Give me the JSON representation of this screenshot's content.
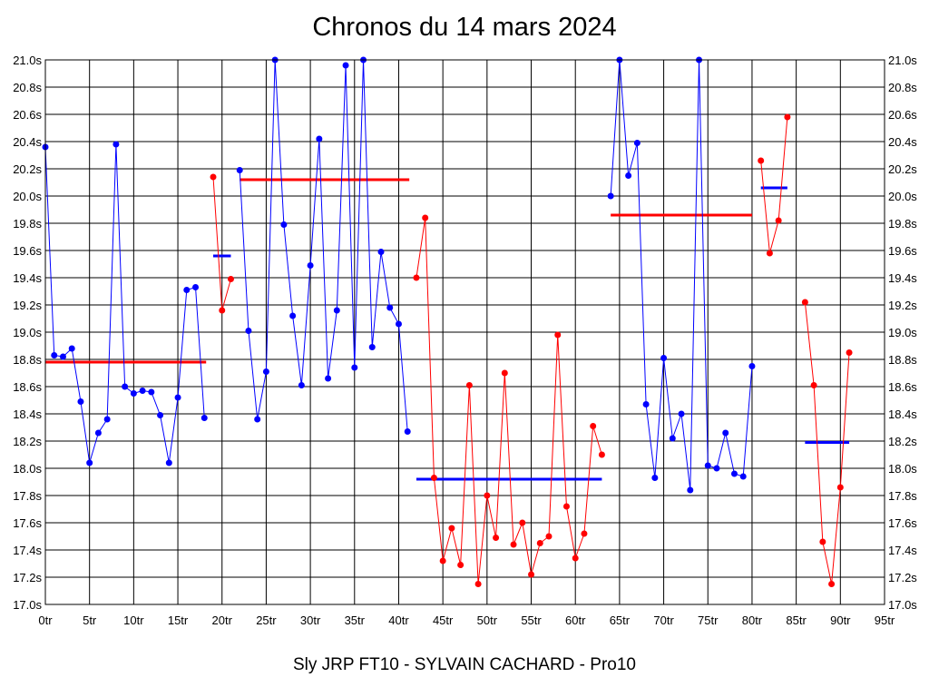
{
  "chart_data": {
    "type": "line",
    "title": "Chronos du 14 mars 2024",
    "xlabel": "Sly JRP FT10 - SYLVAIN CACHARD - Pro10",
    "ylabel": "",
    "xlim": [
      0,
      95
    ],
    "ylim": [
      17.0,
      21.0
    ],
    "grid": true,
    "x_ticks": [
      0,
      5,
      10,
      15,
      20,
      25,
      30,
      35,
      40,
      45,
      50,
      55,
      60,
      65,
      70,
      75,
      80,
      85,
      90,
      95
    ],
    "x_tick_labels": [
      "0tr",
      "5tr",
      "10tr",
      "15tr",
      "20tr",
      "25tr",
      "30tr",
      "35tr",
      "40tr",
      "45tr",
      "50tr",
      "55tr",
      "60tr",
      "65tr",
      "70tr",
      "75tr",
      "80tr",
      "85tr",
      "90tr",
      "95tr"
    ],
    "y_ticks": [
      17.0,
      17.2,
      17.4,
      17.6,
      17.8,
      18.0,
      18.2,
      18.4,
      18.6,
      18.8,
      19.0,
      19.2,
      19.4,
      19.6,
      19.8,
      20.0,
      20.2,
      20.4,
      20.6,
      20.8,
      21.0
    ],
    "y_tick_labels": [
      "17.0s",
      "17.2s",
      "17.4s",
      "17.6s",
      "17.8s",
      "18.0s",
      "18.2s",
      "18.4s",
      "18.6s",
      "18.8s",
      "19.0s",
      "19.2s",
      "19.4s",
      "19.6s",
      "19.8s",
      "20.0s",
      "20.2s",
      "20.4s",
      "20.6s",
      "20.8s",
      "21.0s"
    ],
    "colors": {
      "blue": "#0000ff",
      "red": "#ff0000",
      "grid": "#000000"
    },
    "series": [
      {
        "color": "#0000ff",
        "x": [
          0,
          1,
          2,
          3,
          4,
          5,
          6,
          7,
          8,
          9,
          10,
          11,
          12,
          13,
          14,
          15,
          16,
          17,
          18
        ],
        "values": [
          20.36,
          18.83,
          18.82,
          18.88,
          18.49,
          18.04,
          18.26,
          18.36,
          20.38,
          18.6,
          18.55,
          18.57,
          18.56,
          18.39,
          18.04,
          18.52,
          19.31,
          19.33,
          18.37
        ]
      },
      {
        "color": "#ff0000",
        "x": [
          19,
          20,
          21
        ],
        "values": [
          20.14,
          19.16,
          19.39
        ]
      },
      {
        "color": "#0000ff",
        "x": [
          22,
          23,
          24,
          25,
          26,
          27,
          28,
          29,
          30,
          31,
          32,
          33,
          34,
          35,
          36,
          37,
          38,
          39,
          40,
          41
        ],
        "values": [
          20.19,
          19.01,
          18.36,
          18.71,
          21.0,
          19.79,
          19.12,
          18.61,
          19.49,
          20.42,
          18.66,
          19.16,
          20.96,
          18.74,
          21.0,
          18.89,
          19.59,
          19.18,
          19.06,
          18.27
        ]
      },
      {
        "color": "#ff0000",
        "x": [
          42,
          43,
          44,
          45,
          46,
          47,
          48,
          49,
          50,
          51,
          52,
          53,
          54,
          55,
          56,
          57,
          58,
          59,
          60,
          61,
          62,
          63
        ],
        "values": [
          19.4,
          19.84,
          17.93,
          17.32,
          17.56,
          17.29,
          18.61,
          17.15,
          17.8,
          17.49,
          18.7,
          17.44,
          17.6,
          17.22,
          17.45,
          17.5,
          18.98,
          17.72,
          17.34,
          17.52,
          18.31,
          18.1
        ]
      },
      {
        "color": "#0000ff",
        "x": [
          64,
          65,
          66,
          67,
          68,
          69,
          70,
          71,
          72,
          73,
          74,
          75,
          76,
          77,
          78,
          79,
          80
        ],
        "values": [
          20.0,
          21.0,
          20.15,
          20.39,
          18.47,
          17.93,
          18.81,
          18.22,
          18.4,
          17.84,
          21.0,
          18.02,
          18.0,
          18.26,
          17.96,
          17.94,
          18.75
        ]
      },
      {
        "color": "#ff0000",
        "x": [
          81,
          82,
          83,
          84
        ],
        "values": [
          20.26,
          19.58,
          19.82,
          20.58
        ]
      },
      {
        "color": "#ff0000",
        "x": [
          86,
          87,
          88,
          89,
          90,
          91
        ],
        "values": [
          19.22,
          18.61,
          17.46,
          17.15,
          17.86,
          18.85
        ]
      }
    ],
    "averages": [
      {
        "color": "#ff0000",
        "x_start": 0,
        "x_end": 18.2,
        "value": 18.78
      },
      {
        "color": "#0000ff",
        "x_start": 19,
        "x_end": 21,
        "value": 19.56
      },
      {
        "color": "#ff0000",
        "x_start": 22,
        "x_end": 41.2,
        "value": 20.12
      },
      {
        "color": "#0000ff",
        "x_start": 42,
        "x_end": 63,
        "value": 17.92
      },
      {
        "color": "#ff0000",
        "x_start": 64,
        "x_end": 80,
        "value": 19.86
      },
      {
        "color": "#0000ff",
        "x_start": 81,
        "x_end": 84,
        "value": 20.06
      },
      {
        "color": "#0000ff",
        "x_start": 86,
        "x_end": 91,
        "value": 18.19
      }
    ]
  }
}
